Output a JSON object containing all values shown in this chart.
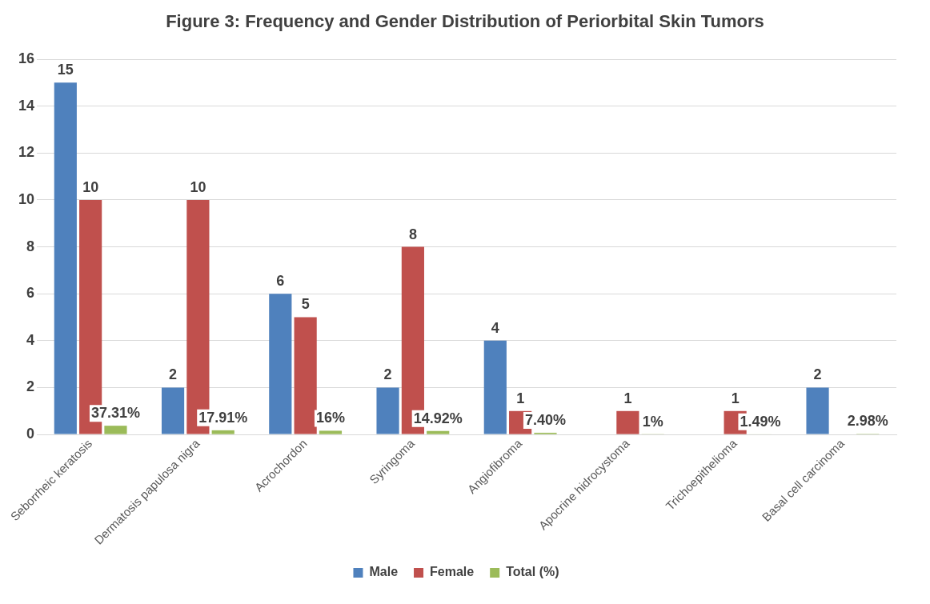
{
  "chart_data": {
    "type": "bar",
    "title": "Figure 3: Frequency and Gender Distribution of Periorbital Skin Tumors",
    "categories": [
      "Seborrheic keratosis",
      "Dermatosis papulosa nigra",
      "Acrochordon",
      "Syringoma",
      "Angiofibroma",
      "Apocrine hidrocystoma",
      "Trichoepithelioma",
      "Basal cell carcinoma"
    ],
    "series": [
      {
        "name": "Male",
        "color": "#4f81bd",
        "values": [
          15,
          2,
          6,
          2,
          4,
          0,
          0,
          2
        ],
        "value_labels": [
          "15",
          "2",
          "6",
          "2",
          "4",
          null,
          null,
          "2"
        ]
      },
      {
        "name": "Female",
        "color": "#c0504d",
        "values": [
          10,
          10,
          5,
          8,
          1,
          1,
          1,
          0
        ],
        "value_labels": [
          "10",
          "10",
          "5",
          "8",
          "1",
          "1",
          "1",
          null
        ]
      },
      {
        "name": "Total (%)",
        "color": "#9bbb59",
        "values": [
          0.3731,
          0.1791,
          0.16,
          0.1492,
          0.074,
          0.01,
          0.0149,
          0.0298
        ],
        "value_labels": [
          "37.31%",
          "17.91%",
          "16%",
          "14.92%",
          "7.40%",
          "1%",
          "1.49%",
          "2.98%"
        ]
      }
    ],
    "ylim": [
      0,
      16
    ],
    "yticks": [
      0,
      2,
      4,
      6,
      8,
      10,
      12,
      14,
      16
    ],
    "grid": "y",
    "legend": "bottom"
  }
}
